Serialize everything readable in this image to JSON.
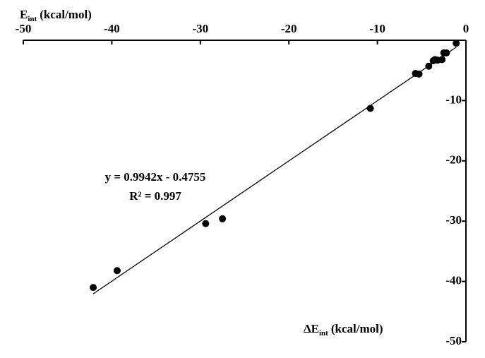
{
  "chart_data": {
    "type": "scatter",
    "y_label": {
      "main": "E",
      "sub": "int",
      "unit": "(kcal/mol)"
    },
    "x_label": {
      "main": "ΔE",
      "sub": "int",
      "unit": "(kcal/mol)"
    },
    "equation": "y = 0.9942x - 0.4755",
    "r_squared": "R² = 0.997",
    "x": [
      -42.1,
      -39.4,
      -29.4,
      -27.5,
      -10.8,
      -5.7,
      -5.3,
      -4.2,
      -3.7,
      -3.5,
      -3.2,
      -2.7,
      -2.5,
      -2.2,
      -1.1
    ],
    "values": [
      -41,
      -38.2,
      -30.4,
      -29.6,
      -11.3,
      -5.5,
      -5.6,
      -4.3,
      -3.4,
      -3.2,
      -3.3,
      -3.2,
      -2.1,
      -2.1,
      -0.5
    ],
    "color": "#000000",
    "xlim": [
      -50,
      0
    ],
    "xticks": [
      -50,
      -40,
      -30,
      -20,
      -10,
      0
    ],
    "ylim": [
      -50,
      0
    ],
    "yticks": [
      -50,
      -40,
      -30,
      -20,
      -10,
      0
    ],
    "trendline": true
  }
}
